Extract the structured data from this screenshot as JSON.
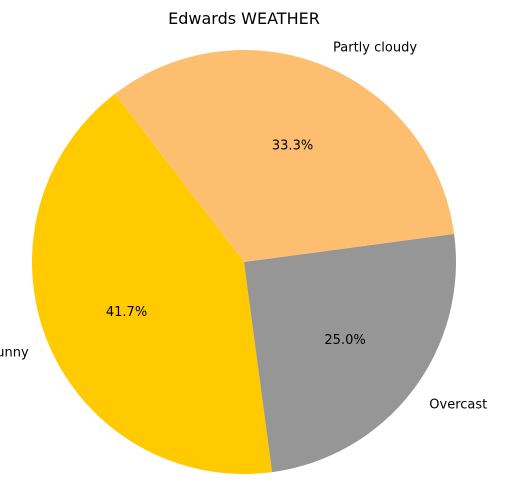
{
  "chart_data": {
    "type": "pie",
    "title": "Edwards WEATHER",
    "categories": [
      "Sunny",
      "Overcast",
      "Partly cloudy"
    ],
    "values": [
      41.7,
      25.0,
      33.3
    ],
    "percent_labels": [
      "41.7%",
      "25.0%",
      "33.3%"
    ],
    "colors": [
      "#FFCA00",
      "#969696",
      "#FDBF6F"
    ],
    "legend": "none"
  }
}
